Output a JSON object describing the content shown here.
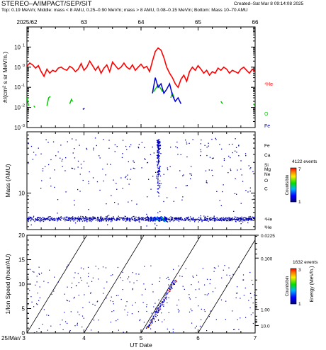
{
  "header": {
    "title": "STEREO–A/IMPACT/SEP/SIT",
    "created": "Created–Sat Mar  8 09:14:08 2025",
    "subtitle": "Top: 0.19 MeV/n; Middle: mass < 8 AMU, 0.25–0.90 MeV/n; mass > 8 AMU, 0.08–0.15 MeV/n; Bottom: Mass 10–70 AMU"
  },
  "colors": {
    "he": "#ff0000",
    "o": "#00cc00",
    "fe": "#0000cc",
    "axis": "#000000"
  },
  "chart_data": [
    {
      "type": "line",
      "ylabel": "#/(cm² s sr MeV/n.)",
      "yscale": "log",
      "ylim": [
        0.001,
        100
      ],
      "xlim": [
        62,
        66
      ],
      "top_axis": {
        "labels": [
          "2025/62",
          "63",
          "64",
          "65",
          "66"
        ],
        "values": [
          62,
          63,
          64,
          65,
          66
        ]
      },
      "ytick_labels": {
        "exponents": [
          "-3",
          "-2",
          "-1",
          "0",
          "1"
        ],
        "values": [
          0.001,
          0.01,
          0.1,
          1,
          10
        ]
      },
      "series": [
        {
          "name": "⁴He",
          "color": "#ff0000",
          "x": [
            62.0,
            62.05,
            62.1,
            62.15,
            62.2,
            62.25,
            62.3,
            62.35,
            62.4,
            62.45,
            62.5,
            62.55,
            62.6,
            62.65,
            62.7,
            62.75,
            62.8,
            62.85,
            62.9,
            62.95,
            63.0,
            63.05,
            63.1,
            63.15,
            63.2,
            63.25,
            63.3,
            63.35,
            63.4,
            63.45,
            63.5,
            63.55,
            63.6,
            63.65,
            63.7,
            63.75,
            63.8,
            63.85,
            63.9,
            63.95,
            64.0,
            64.05,
            64.1,
            64.15,
            64.2,
            64.25,
            64.3,
            64.35,
            64.4,
            64.45,
            64.5,
            64.55,
            64.6,
            64.65,
            64.7,
            64.75,
            64.8,
            64.85,
            64.9,
            64.95,
            65.0,
            65.05,
            65.1,
            65.15,
            65.2,
            65.25,
            65.3,
            65.35,
            65.4,
            65.45,
            65.5,
            65.55,
            65.6,
            65.65,
            65.7,
            65.75,
            65.8,
            65.85,
            65.9,
            65.95,
            66.0
          ],
          "values": [
            1.1,
            1.6,
            1.3,
            0.9,
            1.2,
            0.6,
            0.35,
            0.8,
            0.5,
            0.7,
            0.6,
            0.9,
            1.0,
            0.8,
            0.7,
            1.1,
            0.9,
            0.6,
            0.8,
            1.5,
            0.7,
            1.0,
            2.0,
            1.2,
            0.7,
            1.1,
            0.5,
            0.9,
            1.3,
            0.6,
            1.8,
            1.2,
            0.8,
            1.0,
            1.6,
            1.0,
            0.8,
            1.3,
            0.7,
            1.0,
            1.4,
            0.9,
            1.1,
            0.6,
            2.0,
            6.0,
            9.0,
            7.0,
            3.0,
            1.0,
            0.5,
            0.3,
            0.15,
            0.1,
            0.25,
            0.4,
            0.2,
            0.6,
            1.0,
            0.7,
            1.2,
            0.8,
            0.5,
            0.7,
            0.4,
            0.6,
            0.5,
            0.9,
            0.7,
            1.0,
            0.8,
            0.5,
            0.7,
            0.6,
            0.5,
            0.8,
            1.0,
            0.7,
            0.5,
            0.8,
            0.6
          ]
        },
        {
          "name": "O",
          "color": "#00cc00",
          "x": [
            62.0,
            62.03,
            null,
            62.12,
            62.14,
            null,
            62.35,
            62.38,
            62.41,
            null,
            62.75,
            62.78,
            62.8,
            null,
            64.22,
            64.26,
            64.3,
            64.34,
            64.38,
            null,
            64.52,
            64.55,
            64.58,
            null,
            65.4,
            65.43,
            null,
            65.97,
            66.0
          ],
          "values": [
            0.03,
            0.012,
            null,
            0.012,
            0.01,
            null,
            0.012,
            0.03,
            0.035,
            null,
            0.015,
            0.025,
            0.02,
            null,
            0.06,
            0.09,
            0.13,
            0.09,
            0.06,
            null,
            0.03,
            0.05,
            0.03,
            null,
            0.02,
            0.015,
            null,
            0.015,
            0.012
          ]
        },
        {
          "name": "Fe",
          "color": "#0000cc",
          "x": [
            62.98,
            63.01,
            null,
            64.2,
            64.25,
            64.3,
            64.35,
            64.4,
            64.45,
            64.5,
            64.55,
            64.6,
            64.65,
            64.7
          ],
          "values": [
            0.008,
            0.009,
            null,
            0.05,
            0.3,
            0.1,
            0.15,
            0.05,
            0.08,
            0.15,
            0.04,
            0.02,
            0.03,
            0.015
          ]
        }
      ],
      "annotations": [
        "⁴He",
        "O",
        "Fe"
      ]
    },
    {
      "type": "scatter",
      "ylabel": "Mass (AMU)",
      "yscale": "log",
      "ylim": [
        2.7,
        90
      ],
      "xlim": [
        62,
        66
      ],
      "ytick_labels": [
        "10"
      ],
      "ytick_values": [
        10
      ],
      "species_labels": [
        "Fe",
        "Ca",
        "Si",
        "Mg",
        "Ne",
        "O",
        "C",
        "⁴He",
        "³He"
      ],
      "species_mass": [
        56,
        40,
        28,
        24,
        20,
        16,
        12,
        4,
        3
      ],
      "colorbar": {
        "label": "Counts/bin",
        "title": "4122 events",
        "min": "1",
        "max": "7"
      }
    },
    {
      "type": "scatter",
      "ylabel": "1/Ion Speed (hour/AU)",
      "xlabel": "UT Date",
      "ylim": [
        0,
        20
      ],
      "xlim": [
        3,
        7
      ],
      "xtick_labels": [
        "25/Mar/ 3",
        "4",
        "5",
        "6",
        "7"
      ],
      "ytick_labels": [
        "0",
        "5",
        "10",
        "15",
        "20"
      ],
      "right_axis": {
        "label": "Energy (MeV/n.)",
        "ticks": [
          "0.0225",
          "0.100",
          "1.00",
          "10.0"
        ]
      },
      "colorbar": {
        "label": "Counts/bin",
        "title": "1632 events",
        "min": "1",
        "max": "3"
      }
    }
  ]
}
